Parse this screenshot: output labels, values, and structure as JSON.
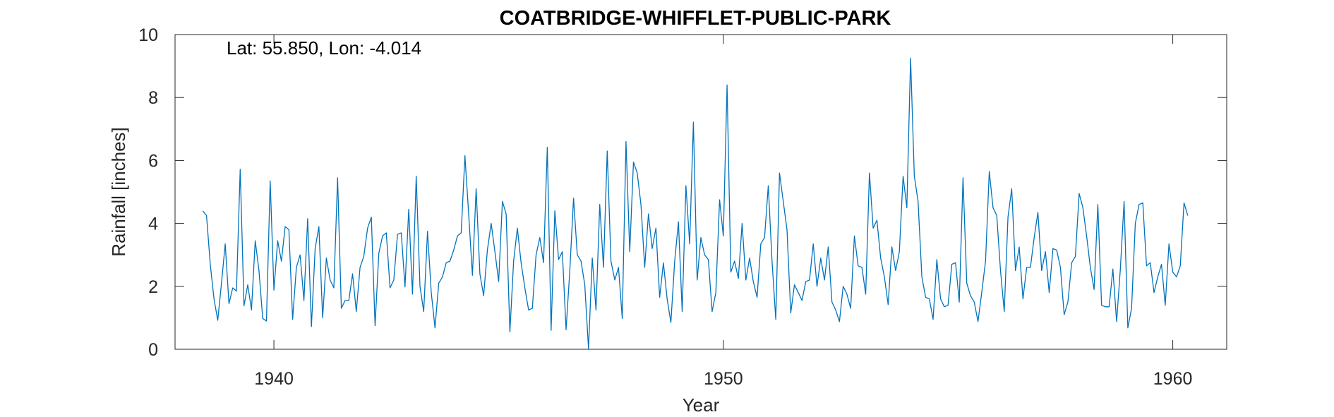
{
  "chart_data": {
    "type": "line",
    "title": "COATBRIDGE-WHIFFLET-PUBLIC-PARK",
    "xlabel": "Year",
    "ylabel": "Rainfall [inches]",
    "annotation": "Lat: 55.850, Lon: -4.014",
    "xlim": [
      1937.8,
      1961.2
    ],
    "ylim": [
      0,
      10
    ],
    "xticks": [
      1940,
      1950,
      1960
    ],
    "yticks": [
      0,
      2,
      4,
      6,
      8,
      10
    ],
    "grid": false,
    "legend": "none",
    "line_color": "#0072BD",
    "x_start": 1938.417,
    "x_step": 0.08333,
    "series": [
      {
        "values": [
          4.4,
          4.25,
          2.7,
          1.6,
          0.92,
          2.1,
          3.35,
          1.45,
          1.95,
          1.85,
          5.72,
          1.38,
          2.05,
          1.25,
          3.45,
          2.5,
          0.98,
          0.9,
          5.35,
          1.88,
          3.45,
          2.8,
          3.9,
          3.8,
          0.95,
          2.6,
          3.0,
          1.55,
          4.15,
          0.72,
          3.2,
          3.9,
          1.0,
          2.9,
          2.2,
          1.95,
          5.45,
          1.3,
          1.55,
          1.55,
          2.4,
          1.2,
          2.6,
          2.95,
          3.85,
          4.2,
          0.75,
          3.05,
          3.6,
          3.7,
          1.95,
          2.2,
          3.65,
          3.7,
          1.98,
          4.45,
          1.75,
          5.5,
          2.0,
          1.2,
          3.75,
          1.8,
          0.68,
          2.1,
          2.3,
          2.75,
          2.8,
          3.15,
          3.6,
          3.7,
          6.15,
          4.3,
          2.35,
          5.1,
          2.4,
          1.7,
          3.15,
          4.0,
          3.1,
          2.15,
          4.7,
          4.3,
          0.55,
          2.8,
          3.85,
          2.75,
          1.95,
          1.25,
          1.3,
          3.0,
          3.55,
          2.75,
          6.42,
          0.6,
          4.4,
          2.85,
          3.1,
          0.62,
          2.5,
          4.8,
          3.0,
          2.8,
          2.05,
          0.02,
          2.9,
          1.25,
          4.6,
          2.6,
          6.3,
          2.8,
          2.2,
          2.6,
          0.98,
          6.6,
          3.1,
          5.95,
          5.6,
          4.6,
          2.6,
          4.3,
          3.2,
          3.85,
          1.65,
          2.75,
          1.6,
          0.85,
          2.8,
          4.05,
          1.2,
          5.2,
          3.35,
          7.22,
          2.2,
          3.55,
          3.0,
          2.85,
          1.2,
          1.8,
          4.75,
          3.6,
          8.4,
          2.45,
          2.8,
          2.25,
          4.0,
          2.2,
          2.9,
          2.15,
          1.65,
          3.35,
          3.55,
          5.2,
          2.8,
          0.95,
          5.6,
          4.7,
          3.8,
          1.15,
          2.05,
          1.8,
          1.55,
          2.15,
          2.2,
          3.35,
          2.0,
          2.9,
          2.2,
          3.25,
          1.5,
          1.25,
          0.88,
          2.0,
          1.75,
          1.3,
          3.6,
          2.65,
          2.6,
          1.75,
          5.6,
          3.85,
          4.1,
          2.9,
          2.3,
          1.42,
          3.25,
          2.5,
          3.1,
          5.5,
          4.5,
          9.25,
          5.5,
          4.7,
          2.3,
          1.65,
          1.6,
          0.95,
          2.85,
          1.6,
          1.35,
          1.4,
          2.7,
          2.75,
          1.5,
          5.45,
          2.1,
          1.7,
          1.5,
          0.88,
          1.8,
          2.8,
          5.65,
          4.5,
          4.25,
          2.5,
          1.2,
          4.2,
          5.1,
          2.5,
          3.25,
          1.6,
          2.6,
          2.6,
          3.55,
          4.35,
          2.5,
          3.1,
          1.8,
          3.2,
          3.15,
          2.6,
          1.1,
          1.5,
          2.75,
          2.95,
          4.95,
          4.5,
          3.6,
          2.6,
          1.9,
          4.6,
          1.4,
          1.35,
          1.35,
          2.55,
          0.88,
          2.55,
          4.7,
          0.68,
          1.3,
          4.0,
          4.6,
          4.65,
          2.65,
          2.75,
          1.8,
          2.3,
          2.7,
          1.4,
          3.35,
          2.45,
          2.3,
          2.65,
          4.65,
          4.25
        ]
      }
    ]
  }
}
